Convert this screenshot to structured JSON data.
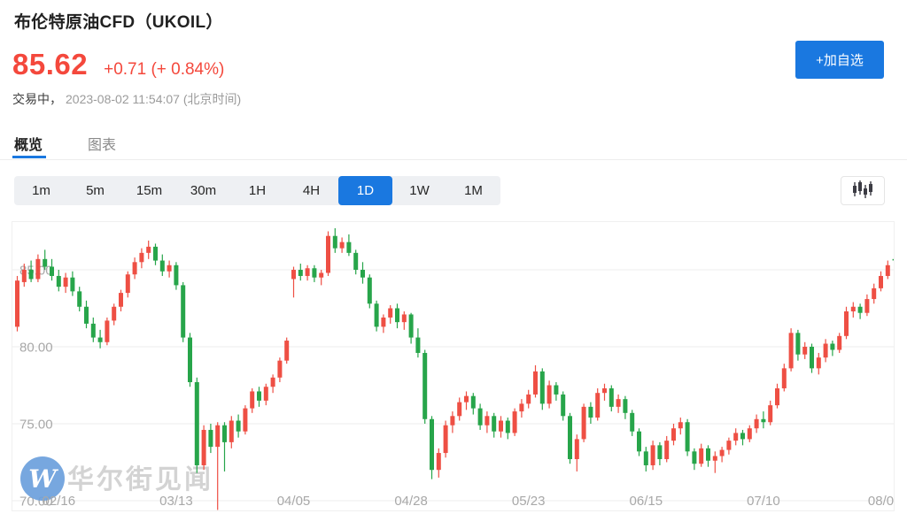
{
  "header": {
    "title": "布伦特原油CFD（UKOIL）",
    "price": "85.62",
    "change": "+0.71 (+ 0.84%)",
    "status_label": "交易中，",
    "timestamp": "2023-08-02 11:54:07 (北京时间)",
    "add_watchlist_label": "+加自选"
  },
  "tabs": [
    {
      "label": "概览",
      "active": true
    },
    {
      "label": "图表",
      "active": false
    }
  ],
  "intervals": [
    {
      "label": "1m",
      "selected": false
    },
    {
      "label": "5m",
      "selected": false
    },
    {
      "label": "15m",
      "selected": false
    },
    {
      "label": "30m",
      "selected": false
    },
    {
      "label": "1H",
      "selected": false
    },
    {
      "label": "4H",
      "selected": false
    },
    {
      "label": "1D",
      "selected": true
    },
    {
      "label": "1W",
      "selected": false
    },
    {
      "label": "1M",
      "selected": false
    }
  ],
  "watermark": {
    "logo_letter": "W",
    "text": "华尔街见闻"
  },
  "colors": {
    "up": "#ee4f44",
    "down": "#27a54a",
    "accent_blue": "#1a78e0",
    "price_red": "#f4483c",
    "grid": "#ededed",
    "axis_text": "#a8a8a8",
    "watermark_circle": "#6b9fdc",
    "watermark_text": "#c9c9c9"
  },
  "chart_data": {
    "type": "candlestick",
    "symbol": "UKOIL",
    "title": "布伦特原油CFD 日线",
    "interval": "1D",
    "grid": true,
    "y_axis": {
      "ticks": [
        85,
        80,
        75,
        70
      ],
      "labels": [
        "85.00",
        "80.00",
        "75.00",
        "70.00"
      ],
      "visible_range": [
        69.2,
        88.3
      ]
    },
    "x_ticks": [
      {
        "i": 6,
        "label": "02/16"
      },
      {
        "i": 23,
        "label": "03/13"
      },
      {
        "i": 40,
        "label": "04/05"
      },
      {
        "i": 57,
        "label": "04/28"
      },
      {
        "i": 74,
        "label": "05/23"
      },
      {
        "i": 91,
        "label": "06/15"
      },
      {
        "i": 108,
        "label": "07/10"
      },
      {
        "i": 125,
        "label": "08/0"
      }
    ],
    "candles": [
      [
        81.3,
        84.6,
        81.0,
        84.3
      ],
      [
        84.2,
        85.4,
        83.9,
        85.0
      ],
      [
        85.0,
        85.6,
        84.2,
        84.4
      ],
      [
        84.4,
        86.0,
        84.2,
        85.7
      ],
      [
        85.7,
        86.3,
        85.0,
        85.2
      ],
      [
        85.2,
        85.7,
        84.3,
        84.6
      ],
      [
        84.6,
        85.0,
        83.6,
        83.9
      ],
      [
        83.9,
        84.8,
        83.5,
        84.5
      ],
      [
        84.5,
        84.9,
        83.3,
        83.6
      ],
      [
        83.6,
        83.9,
        82.3,
        82.6
      ],
      [
        82.6,
        83.0,
        81.2,
        81.5
      ],
      [
        81.5,
        81.9,
        80.3,
        80.6
      ],
      [
        80.6,
        81.1,
        79.9,
        80.3
      ],
      [
        80.3,
        81.9,
        80.1,
        81.7
      ],
      [
        81.7,
        82.8,
        81.4,
        82.6
      ],
      [
        82.6,
        83.7,
        82.3,
        83.5
      ],
      [
        83.5,
        84.9,
        83.2,
        84.7
      ],
      [
        84.7,
        85.8,
        84.4,
        85.5
      ],
      [
        85.5,
        86.4,
        85.1,
        86.1
      ],
      [
        86.1,
        86.9,
        85.7,
        86.5
      ],
      [
        86.5,
        86.7,
        85.3,
        85.6
      ],
      [
        85.6,
        86.0,
        84.6,
        84.9
      ],
      [
        84.9,
        85.6,
        84.5,
        85.3
      ],
      [
        85.3,
        85.5,
        83.7,
        84.0
      ],
      [
        84.0,
        84.2,
        80.3,
        80.6
      ],
      [
        80.6,
        80.9,
        77.4,
        77.7
      ],
      [
        77.7,
        78.0,
        71.8,
        72.3
      ],
      [
        72.3,
        74.9,
        72.0,
        74.6
      ],
      [
        74.6,
        75.0,
        73.1,
        73.5
      ],
      [
        73.5,
        75.1,
        69.4,
        74.9
      ],
      [
        74.9,
        75.1,
        71.9,
        73.8
      ],
      [
        73.8,
        75.5,
        73.4,
        75.2
      ],
      [
        75.2,
        75.6,
        74.1,
        74.5
      ],
      [
        74.5,
        76.2,
        74.3,
        76.0
      ],
      [
        76.0,
        77.3,
        75.7,
        77.1
      ],
      [
        77.1,
        77.4,
        76.1,
        76.5
      ],
      [
        76.5,
        77.6,
        76.2,
        77.4
      ],
      [
        77.4,
        78.2,
        77.0,
        78.0
      ],
      [
        78.0,
        79.3,
        77.7,
        79.1
      ],
      [
        79.1,
        80.6,
        78.9,
        80.4
      ],
      [
        84.4,
        85.2,
        83.2,
        85.0
      ],
      [
        85.0,
        85.4,
        84.3,
        84.6
      ],
      [
        84.6,
        85.3,
        84.3,
        85.1
      ],
      [
        85.1,
        85.3,
        84.2,
        84.5
      ],
      [
        84.5,
        85.0,
        84.0,
        84.8
      ],
      [
        84.8,
        87.5,
        84.6,
        87.2
      ],
      [
        87.2,
        87.7,
        86.1,
        86.4
      ],
      [
        86.4,
        87.1,
        86.1,
        86.8
      ],
      [
        86.8,
        87.3,
        85.9,
        86.1
      ],
      [
        86.1,
        86.3,
        84.7,
        85.0
      ],
      [
        85.0,
        85.5,
        84.1,
        84.5
      ],
      [
        84.5,
        84.7,
        82.5,
        82.8
      ],
      [
        82.8,
        83.0,
        81.0,
        81.3
      ],
      [
        81.3,
        82.1,
        80.9,
        81.9
      ],
      [
        81.9,
        82.7,
        81.5,
        82.5
      ],
      [
        82.5,
        82.8,
        81.2,
        81.6
      ],
      [
        81.6,
        82.3,
        81.1,
        82.1
      ],
      [
        82.1,
        82.2,
        80.2,
        80.6
      ],
      [
        80.6,
        81.2,
        79.3,
        79.6
      ],
      [
        79.6,
        79.8,
        75.0,
        75.3
      ],
      [
        75.3,
        75.5,
        71.4,
        72.0
      ],
      [
        72.0,
        73.4,
        71.5,
        73.1
      ],
      [
        73.1,
        75.2,
        72.8,
        74.9
      ],
      [
        74.9,
        75.8,
        74.4,
        75.5
      ],
      [
        75.5,
        76.7,
        75.2,
        76.4
      ],
      [
        76.4,
        77.1,
        75.9,
        76.8
      ],
      [
        76.8,
        77.0,
        75.6,
        76.0
      ],
      [
        76.0,
        76.3,
        74.6,
        74.9
      ],
      [
        74.9,
        75.8,
        74.4,
        75.5
      ],
      [
        75.5,
        75.7,
        74.1,
        74.5
      ],
      [
        74.5,
        75.5,
        74.1,
        75.2
      ],
      [
        75.2,
        75.4,
        74.0,
        74.4
      ],
      [
        74.4,
        76.0,
        74.2,
        75.8
      ],
      [
        75.8,
        76.6,
        75.4,
        76.3
      ],
      [
        76.3,
        77.2,
        76.0,
        76.9
      ],
      [
        76.9,
        78.8,
        76.7,
        78.4
      ],
      [
        78.4,
        78.6,
        75.9,
        76.3
      ],
      [
        76.3,
        77.8,
        76.0,
        77.5
      ],
      [
        77.5,
        77.7,
        76.5,
        76.9
      ],
      [
        76.9,
        77.1,
        75.2,
        75.5
      ],
      [
        75.5,
        75.7,
        72.4,
        72.7
      ],
      [
        72.7,
        74.3,
        71.9,
        74.0
      ],
      [
        74.0,
        76.3,
        73.8,
        76.1
      ],
      [
        76.1,
        76.4,
        75.0,
        75.4
      ],
      [
        75.4,
        77.3,
        75.2,
        77.0
      ],
      [
        77.0,
        77.6,
        76.5,
        77.3
      ],
      [
        77.3,
        77.5,
        75.8,
        76.1
      ],
      [
        76.1,
        76.9,
        75.7,
        76.6
      ],
      [
        76.6,
        76.8,
        75.3,
        75.7
      ],
      [
        75.7,
        75.9,
        74.2,
        74.5
      ],
      [
        74.5,
        74.7,
        72.9,
        73.2
      ],
      [
        73.2,
        73.5,
        71.9,
        72.3
      ],
      [
        72.3,
        73.9,
        72.0,
        73.6
      ],
      [
        73.6,
        73.8,
        72.3,
        72.7
      ],
      [
        72.7,
        74.2,
        72.5,
        73.9
      ],
      [
        73.9,
        75.0,
        73.6,
        74.7
      ],
      [
        74.7,
        75.4,
        74.3,
        75.1
      ],
      [
        75.1,
        75.3,
        72.9,
        73.2
      ],
      [
        73.2,
        73.4,
        72.0,
        72.4
      ],
      [
        72.4,
        73.7,
        72.2,
        73.4
      ],
      [
        73.4,
        73.6,
        72.2,
        72.6
      ],
      [
        72.6,
        73.2,
        71.8,
        72.9
      ],
      [
        72.9,
        73.5,
        72.5,
        73.3
      ],
      [
        73.3,
        74.1,
        73.0,
        73.9
      ],
      [
        73.9,
        74.7,
        73.6,
        74.4
      ],
      [
        74.4,
        74.6,
        73.6,
        74.0
      ],
      [
        74.0,
        74.9,
        73.8,
        74.7
      ],
      [
        74.7,
        75.6,
        74.4,
        75.3
      ],
      [
        75.3,
        75.8,
        74.7,
        75.1
      ],
      [
        75.1,
        76.5,
        74.9,
        76.2
      ],
      [
        76.2,
        77.6,
        76.0,
        77.3
      ],
      [
        77.3,
        78.9,
        77.1,
        78.6
      ],
      [
        78.6,
        81.2,
        78.4,
        80.9
      ],
      [
        80.9,
        81.1,
        79.1,
        79.5
      ],
      [
        79.5,
        80.3,
        79.2,
        80.0
      ],
      [
        80.0,
        80.2,
        78.3,
        78.6
      ],
      [
        78.6,
        79.6,
        78.2,
        79.3
      ],
      [
        79.3,
        80.5,
        79.0,
        80.2
      ],
      [
        80.2,
        80.4,
        79.4,
        79.8
      ],
      [
        79.8,
        80.9,
        79.6,
        80.7
      ],
      [
        80.7,
        82.6,
        80.5,
        82.3
      ],
      [
        82.3,
        82.9,
        81.9,
        82.6
      ],
      [
        82.6,
        82.8,
        81.8,
        82.2
      ],
      [
        82.2,
        83.4,
        82.0,
        83.1
      ],
      [
        83.1,
        84.1,
        82.8,
        83.8
      ],
      [
        83.8,
        84.9,
        83.6,
        84.6
      ],
      [
        84.6,
        85.6,
        84.4,
        85.3
      ],
      [
        85.7,
        85.95,
        85.4,
        85.62
      ]
    ]
  }
}
